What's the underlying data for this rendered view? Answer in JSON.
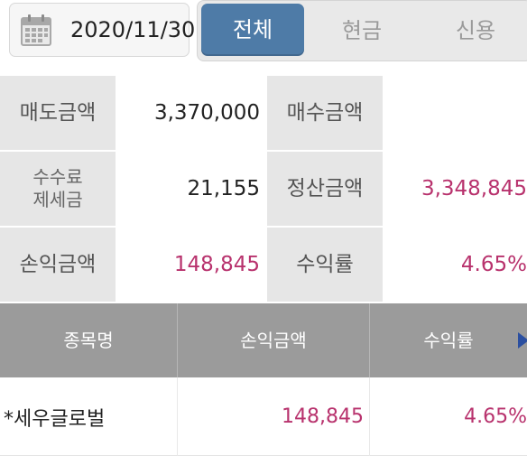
{
  "date": {
    "value": "2020/11/30"
  },
  "tabs": [
    {
      "label": "전체",
      "active": true
    },
    {
      "label": "현금",
      "active": false
    },
    {
      "label": "신용",
      "active": false
    }
  ],
  "summary": {
    "sell_amount_label": "매도금액",
    "sell_amount": "3,370,000",
    "buy_amount_label": "매수금액",
    "buy_amount": "",
    "fee_tax_label_line1": "수수료",
    "fee_tax_label_line2": "제세금",
    "fee_tax": "21,155",
    "settlement_label": "정산금액",
    "settlement": "3,348,845",
    "profit_label": "손익금액",
    "profit": "148,845",
    "return_rate_label": "수익률",
    "return_rate": "4.65%"
  },
  "table": {
    "columns": [
      "종목명",
      "손익금액",
      "수익률"
    ],
    "rows": [
      {
        "name": "*세우글로벌",
        "profit": "148,845",
        "rate": "4.65%"
      }
    ]
  },
  "colors": {
    "accent_tab": "#4e7ba7",
    "label_bg": "#e6e6e6",
    "header_bg": "#9b9b9b",
    "profit_text": "#b8326d"
  }
}
